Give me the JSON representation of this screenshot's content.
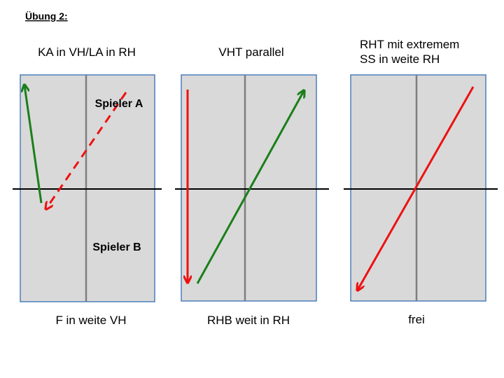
{
  "header": {
    "title": "Übung 2:"
  },
  "panels": [
    {
      "top": [
        "KA in VH/LA in RH"
      ],
      "bottom": "F in weite VH",
      "players": [
        "Spieler A",
        "Spieler B"
      ]
    },
    {
      "top": [
        "VHT parallel"
      ],
      "bottom": "RHB weit in RH"
    },
    {
      "top": [
        "RHT mit extremem",
        "SS in weite RH"
      ],
      "bottom": "frei"
    }
  ]
}
